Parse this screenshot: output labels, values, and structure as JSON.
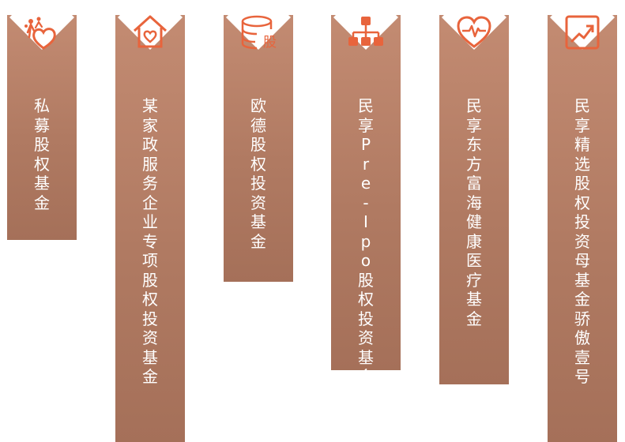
{
  "colors": {
    "card": "#b8826a",
    "icon": "#e8643c",
    "text": "#ffffff"
  },
  "funds": [
    {
      "label": "私募股权基金",
      "icon": "charity-hands-heart-icon"
    },
    {
      "label": "某家政服务企业专项股权投资基金",
      "icon": "home-heart-icon"
    },
    {
      "label": "欧德股权投资基金",
      "icon": "stock-database-icon",
      "icon_text": "股"
    },
    {
      "label": "民享Pre-Ipo股权投资基金",
      "icon": "org-chart-icon"
    },
    {
      "label": "民享东方富海健康医疗基金",
      "icon": "heart-pulse-icon"
    },
    {
      "label": "民享精选股权投资母基金骄傲壹号",
      "icon": "growth-chart-icon"
    }
  ]
}
